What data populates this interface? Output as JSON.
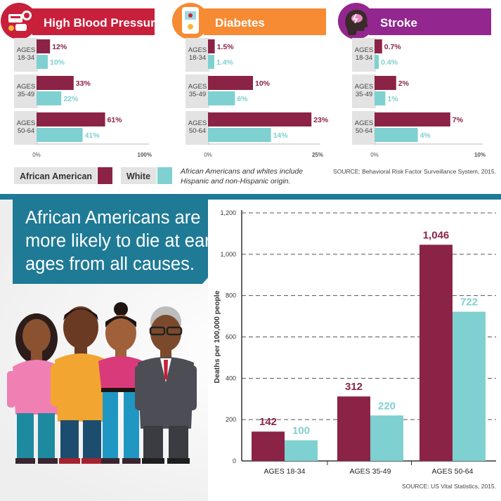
{
  "colors": {
    "african_american": "#8b2346",
    "white": "#7fd0d0",
    "high_blood_pressure": "#c8203b",
    "diabetes": "#f68b33",
    "stroke": "#93268f",
    "teal_banner": "#1f7a96",
    "label_bg": "#e3e3e3"
  },
  "legend": {
    "african_american": "African American",
    "white": "White"
  },
  "note": {
    "line1": "African Americans and whites include",
    "line2": "Hispanic and non-Hispanic origin."
  },
  "source_top": "SOURCE: Behavioral Risk Factor Surveillance System, 2015.",
  "banner": {
    "line1": "African Americans are",
    "line2": "more likely to die at early",
    "line3": "ages from all causes."
  },
  "source_bottom": "SOURCE: US Vital Statistics, 2015.",
  "icons": [
    "blood-pressure-cuff-icon",
    "glucose-meter-icon",
    "brain-icon"
  ],
  "chart_data": [
    {
      "type": "bar",
      "orientation": "horizontal",
      "title": "High Blood Pressure",
      "categories": [
        "AGES 18-34",
        "AGES 35-49",
        "AGES 50-64"
      ],
      "category_lines": [
        [
          "AGES",
          "18-34"
        ],
        [
          "AGES",
          "35-49"
        ],
        [
          "AGES",
          "50-64"
        ]
      ],
      "series": [
        {
          "name": "African American",
          "values": [
            12,
            33,
            61
          ],
          "labels": [
            "12%",
            "33%",
            "61%"
          ]
        },
        {
          "name": "White",
          "values": [
            10,
            22,
            41
          ],
          "labels": [
            "10%",
            "22%",
            "41%"
          ]
        }
      ],
      "xlim": [
        0,
        100
      ],
      "tick_labels": [
        "0%",
        "100%"
      ]
    },
    {
      "type": "bar",
      "orientation": "horizontal",
      "title": "Diabetes",
      "categories": [
        "AGES 18-34",
        "AGES 35-49",
        "AGES 50-64"
      ],
      "category_lines": [
        [
          "AGES",
          "18-34"
        ],
        [
          "AGES",
          "35-49"
        ],
        [
          "AGES",
          "50-64"
        ]
      ],
      "series": [
        {
          "name": "African American",
          "values": [
            1.5,
            10,
            23
          ],
          "labels": [
            "1.5%",
            "10%",
            "23%"
          ]
        },
        {
          "name": "White",
          "values": [
            1.4,
            6,
            14
          ],
          "labels": [
            "1.4%",
            "6%",
            "14%"
          ]
        }
      ],
      "xlim": [
        0,
        25
      ],
      "tick_labels": [
        "0%",
        "25%"
      ]
    },
    {
      "type": "bar",
      "orientation": "horizontal",
      "title": "Stroke",
      "categories": [
        "AGES 18-34",
        "AGES 35-49",
        "AGES 50-64"
      ],
      "category_lines": [
        [
          "AGES",
          "18-34"
        ],
        [
          "AGES",
          "35-49"
        ],
        [
          "AGES",
          "50-64"
        ]
      ],
      "series": [
        {
          "name": "African American",
          "values": [
            0.7,
            2,
            7
          ],
          "labels": [
            "0.7%",
            "2%",
            "7%"
          ]
        },
        {
          "name": "White",
          "values": [
            0.4,
            1,
            4
          ],
          "labels": [
            "0.4%",
            "1%",
            "4%"
          ]
        }
      ],
      "xlim": [
        0,
        10
      ],
      "tick_labels": [
        "0%",
        "10%"
      ]
    },
    {
      "type": "bar",
      "orientation": "vertical",
      "title": "",
      "categories": [
        "AGES 18-34",
        "AGES 35-49",
        "AGES 50-64"
      ],
      "series": [
        {
          "name": "African American",
          "values": [
            142,
            312,
            1046
          ],
          "labels": [
            "142",
            "312",
            "1,046"
          ]
        },
        {
          "name": "White",
          "values": [
            100,
            220,
            722
          ],
          "labels": [
            "100",
            "220",
            "722"
          ]
        }
      ],
      "ylabel": "Deaths per 100,000 people",
      "ylim": [
        0,
        1200
      ],
      "y_ticks": [
        0,
        200,
        400,
        600,
        800,
        1000,
        1200
      ],
      "y_tick_labels": [
        "0",
        "200",
        "400",
        "600",
        "800",
        "1,000",
        "1,200"
      ],
      "grid": true
    }
  ]
}
